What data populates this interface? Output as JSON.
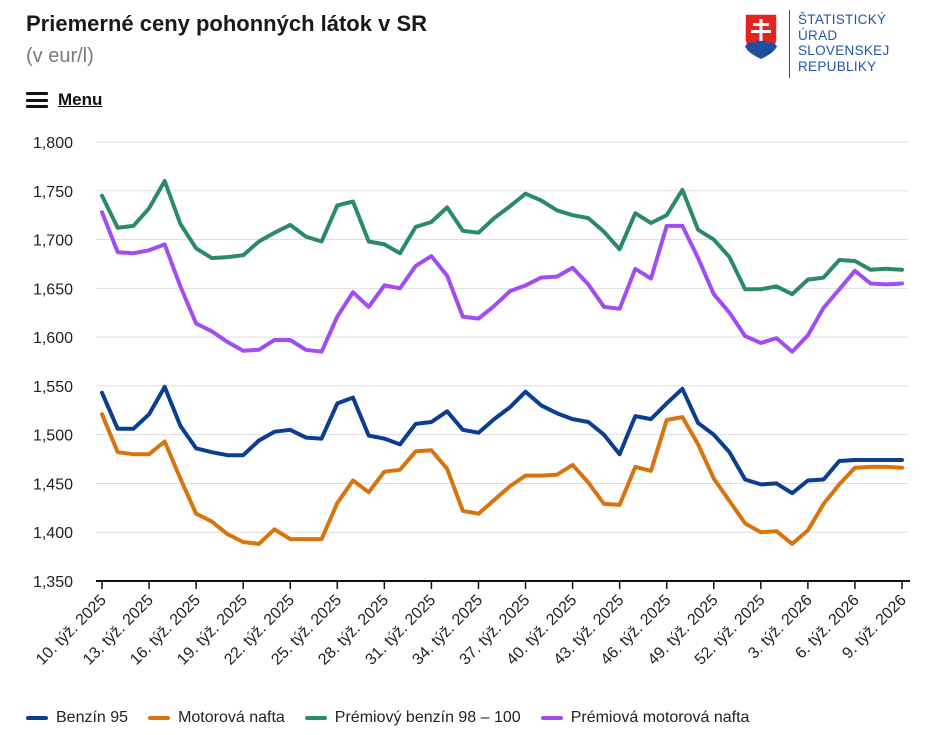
{
  "header": {
    "title": "Priemerné ceny pohonných látok v SR",
    "subtitle": "(v eur/l)",
    "menu_label": "Menu"
  },
  "logo": {
    "line1": "ŠTATISTICKÝ",
    "line2": "ÚRAD",
    "line3": "SLOVENSKEJ",
    "line4": "REPUBLIKY"
  },
  "colors": {
    "benzin95": "#0b3d91",
    "nafta": "#d9730d",
    "premium_benzin": "#2a8a6a",
    "premium_nafta": "#a14df2",
    "logo": "#2455a4"
  },
  "chart_data": {
    "type": "line",
    "title": "Priemerné ceny pohonných látok v SR",
    "ylabel": "(v eur/l)",
    "ylim": [
      1.35,
      1.8
    ],
    "yticks": [
      "1,350",
      "1,400",
      "1,450",
      "1,500",
      "1,550",
      "1,600",
      "1,650",
      "1,700",
      "1,750",
      "1,800"
    ],
    "ytick_values": [
      1.35,
      1.4,
      1.45,
      1.5,
      1.55,
      1.6,
      1.65,
      1.7,
      1.75,
      1.8
    ],
    "x_count": 52,
    "x_labels": [
      {
        "i": 0,
        "label": "10. týž. 2025"
      },
      {
        "i": 3,
        "label": "13. týž. 2025"
      },
      {
        "i": 6,
        "label": "16. týž. 2025"
      },
      {
        "i": 9,
        "label": "19. týž. 2025"
      },
      {
        "i": 12,
        "label": "22. týž. 2025"
      },
      {
        "i": 15,
        "label": "25. týž. 2025"
      },
      {
        "i": 18,
        "label": "28. týž. 2025"
      },
      {
        "i": 21,
        "label": "31. týž. 2025"
      },
      {
        "i": 24,
        "label": "34. týž. 2025"
      },
      {
        "i": 27,
        "label": "37. týž. 2025"
      },
      {
        "i": 30,
        "label": "40. týž. 2025"
      },
      {
        "i": 33,
        "label": "43. týž. 2025"
      },
      {
        "i": 36,
        "label": "46. týž. 2025"
      },
      {
        "i": 39,
        "label": "49. týž. 2025"
      },
      {
        "i": 42,
        "label": "52. týž. 2025"
      },
      {
        "i": 45,
        "label": "3. týž. 2026"
      },
      {
        "i": 48,
        "label": "6. týž. 2026"
      },
      {
        "i": 51,
        "label": "9. týž. 2026"
      }
    ],
    "series": [
      {
        "key": "premium_benzin",
        "name": "Prémiový benzín 98 – 100",
        "values": [
          1.745,
          1.712,
          1.714,
          1.732,
          1.76,
          1.716,
          1.691,
          1.681,
          1.682,
          1.684,
          1.698,
          1.707,
          1.715,
          1.703,
          1.698,
          1.735,
          1.739,
          1.698,
          1.695,
          1.686,
          1.713,
          1.718,
          1.733,
          1.709,
          1.707,
          1.722,
          1.734,
          1.747,
          1.74,
          1.73,
          1.725,
          1.722,
          1.708,
          1.69,
          1.727,
          1.717,
          1.725,
          1.751,
          1.71,
          1.7,
          1.682,
          1.649,
          1.649,
          1.652,
          1.644,
          1.659,
          1.661,
          1.679,
          1.678,
          1.669,
          1.67,
          1.669
        ]
      },
      {
        "key": "premium_nafta",
        "name": "Prémiová motorová nafta",
        "values": [
          1.728,
          1.687,
          1.686,
          1.689,
          1.695,
          1.652,
          1.614,
          1.606,
          1.595,
          1.586,
          1.587,
          1.597,
          1.597,
          1.587,
          1.585,
          1.621,
          1.646,
          1.631,
          1.653,
          1.65,
          1.673,
          1.683,
          1.663,
          1.621,
          1.619,
          1.632,
          1.647,
          1.653,
          1.661,
          1.662,
          1.671,
          1.654,
          1.631,
          1.629,
          1.67,
          1.66,
          1.714,
          1.714,
          1.681,
          1.644,
          1.625,
          1.601,
          1.594,
          1.599,
          1.585,
          1.602,
          1.63,
          1.649,
          1.668,
          1.655,
          1.654,
          1.655
        ]
      },
      {
        "key": "benzin95",
        "name": "Benzín 95",
        "values": [
          1.543,
          1.506,
          1.506,
          1.521,
          1.549,
          1.509,
          1.486,
          1.482,
          1.479,
          1.479,
          1.494,
          1.503,
          1.505,
          1.497,
          1.496,
          1.532,
          1.538,
          1.499,
          1.496,
          1.49,
          1.511,
          1.513,
          1.524,
          1.505,
          1.502,
          1.516,
          1.528,
          1.544,
          1.53,
          1.522,
          1.516,
          1.513,
          1.5,
          1.48,
          1.519,
          1.516,
          1.532,
          1.547,
          1.512,
          1.5,
          1.482,
          1.454,
          1.449,
          1.45,
          1.44,
          1.453,
          1.454,
          1.473,
          1.474,
          1.474,
          1.474,
          1.474
        ]
      },
      {
        "key": "nafta",
        "name": "Motorová nafta",
        "values": [
          1.521,
          1.482,
          1.48,
          1.48,
          1.493,
          1.455,
          1.419,
          1.411,
          1.398,
          1.39,
          1.388,
          1.403,
          1.393,
          1.393,
          1.393,
          1.43,
          1.453,
          1.441,
          1.462,
          1.464,
          1.483,
          1.484,
          1.465,
          1.422,
          1.419,
          1.433,
          1.447,
          1.458,
          1.458,
          1.459,
          1.469,
          1.451,
          1.429,
          1.428,
          1.467,
          1.463,
          1.515,
          1.518,
          1.49,
          1.455,
          1.432,
          1.409,
          1.4,
          1.401,
          1.388,
          1.402,
          1.429,
          1.449,
          1.466,
          1.467,
          1.467,
          1.466
        ]
      }
    ],
    "legend_order": [
      "benzin95",
      "nafta",
      "premium_benzin",
      "premium_nafta"
    ],
    "legend_position": "bottom"
  }
}
